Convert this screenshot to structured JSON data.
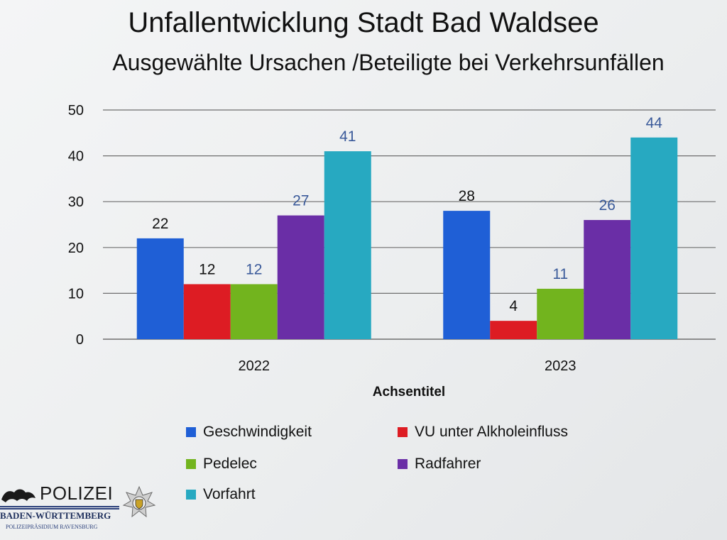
{
  "slide": {
    "title": "Unfallentwicklung Stadt Bad Waldsee",
    "subtitle": "Ausgewählte Ursachen /Beteiligte bei Verkehrsunfällen"
  },
  "logo": {
    "word": "POLIZEI",
    "state": "BADEN-WÜRTTEMBERG",
    "department": "POLIZEIPRÄSIDIUM RAVENSBURG"
  },
  "chart_data": {
    "type": "bar",
    "title": "",
    "xlabel": "Achsentitel",
    "ylabel": "",
    "ylim": [
      0,
      50
    ],
    "yticks": [
      0,
      10,
      20,
      30,
      40,
      50
    ],
    "grid": true,
    "legend_position": "bottom",
    "categories": [
      "2022",
      "2023"
    ],
    "series": [
      {
        "name": "Geschwindigkeit",
        "values": [
          22,
          28
        ],
        "color": "#1f5fd6",
        "label_color": "#111111"
      },
      {
        "name": "VU unter Alkholeinfluss",
        "values": [
          12,
          4
        ],
        "color": "#dd1c23",
        "label_color": "#111111"
      },
      {
        "name": "Pedelec",
        "values": [
          12,
          11
        ],
        "color": "#72b41e",
        "label_color": "#3a5a9a"
      },
      {
        "name": "Radfahrer",
        "values": [
          27,
          26
        ],
        "color": "#6a2ea6",
        "label_color": "#3a5a9a"
      },
      {
        "name": "Vorfahrt",
        "values": [
          41,
          44
        ],
        "color": "#27a9c1",
        "label_color": "#3a5a9a"
      }
    ]
  }
}
